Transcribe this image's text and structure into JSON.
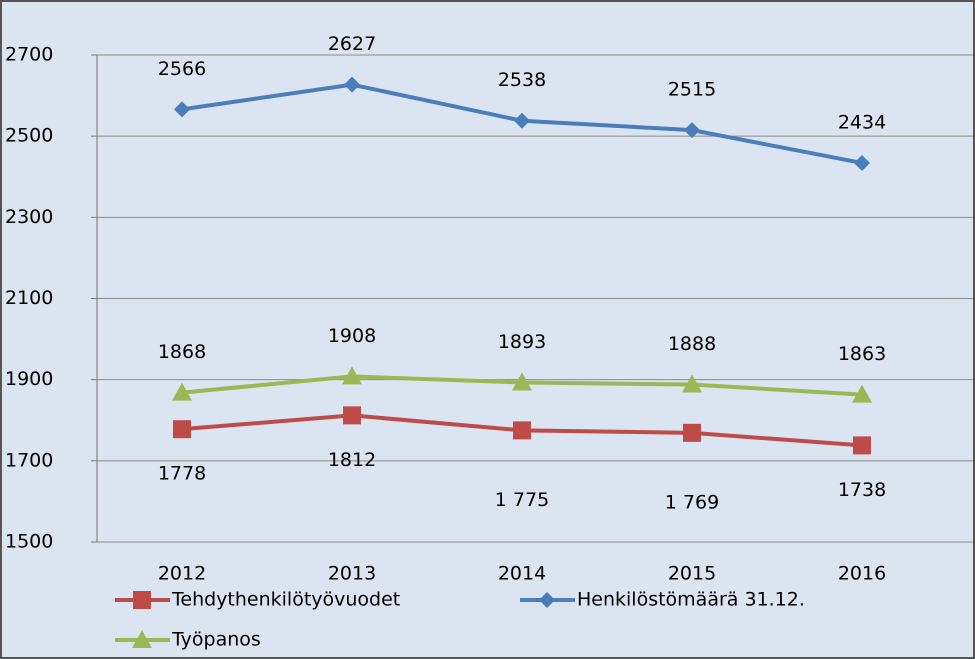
{
  "chart_data": {
    "type": "line",
    "categories": [
      "2012",
      "2013",
      "2014",
      "2015",
      "2016"
    ],
    "ylim": [
      1500,
      2700
    ],
    "yticks": [
      1500,
      1700,
      1900,
      2100,
      2300,
      2500,
      2700
    ],
    "grid": true,
    "series": [
      {
        "name": "Tehdythenkilötyövuodet",
        "color": "#be4b48",
        "marker": "square",
        "label_position": "below",
        "values": [
          1778,
          1812,
          1775,
          1769,
          1738
        ],
        "value_labels": [
          "1778",
          "1812",
          "1 775",
          "1 769",
          "1738"
        ]
      },
      {
        "name": "Henkilöstömäärä 31.12.",
        "color": "#4a7ebb",
        "marker": "diamond",
        "label_position": "above",
        "values": [
          2566,
          2627,
          2538,
          2515,
          2434
        ],
        "value_labels": [
          "2566",
          "2627",
          "2538",
          "2515",
          "2434"
        ]
      },
      {
        "name": "Työpanos",
        "color": "#98b954",
        "marker": "triangle",
        "label_position": "above",
        "values": [
          1868,
          1908,
          1893,
          1888,
          1863
        ],
        "value_labels": [
          "1868",
          "1908",
          "1893",
          "1888",
          "1863"
        ]
      }
    ]
  }
}
